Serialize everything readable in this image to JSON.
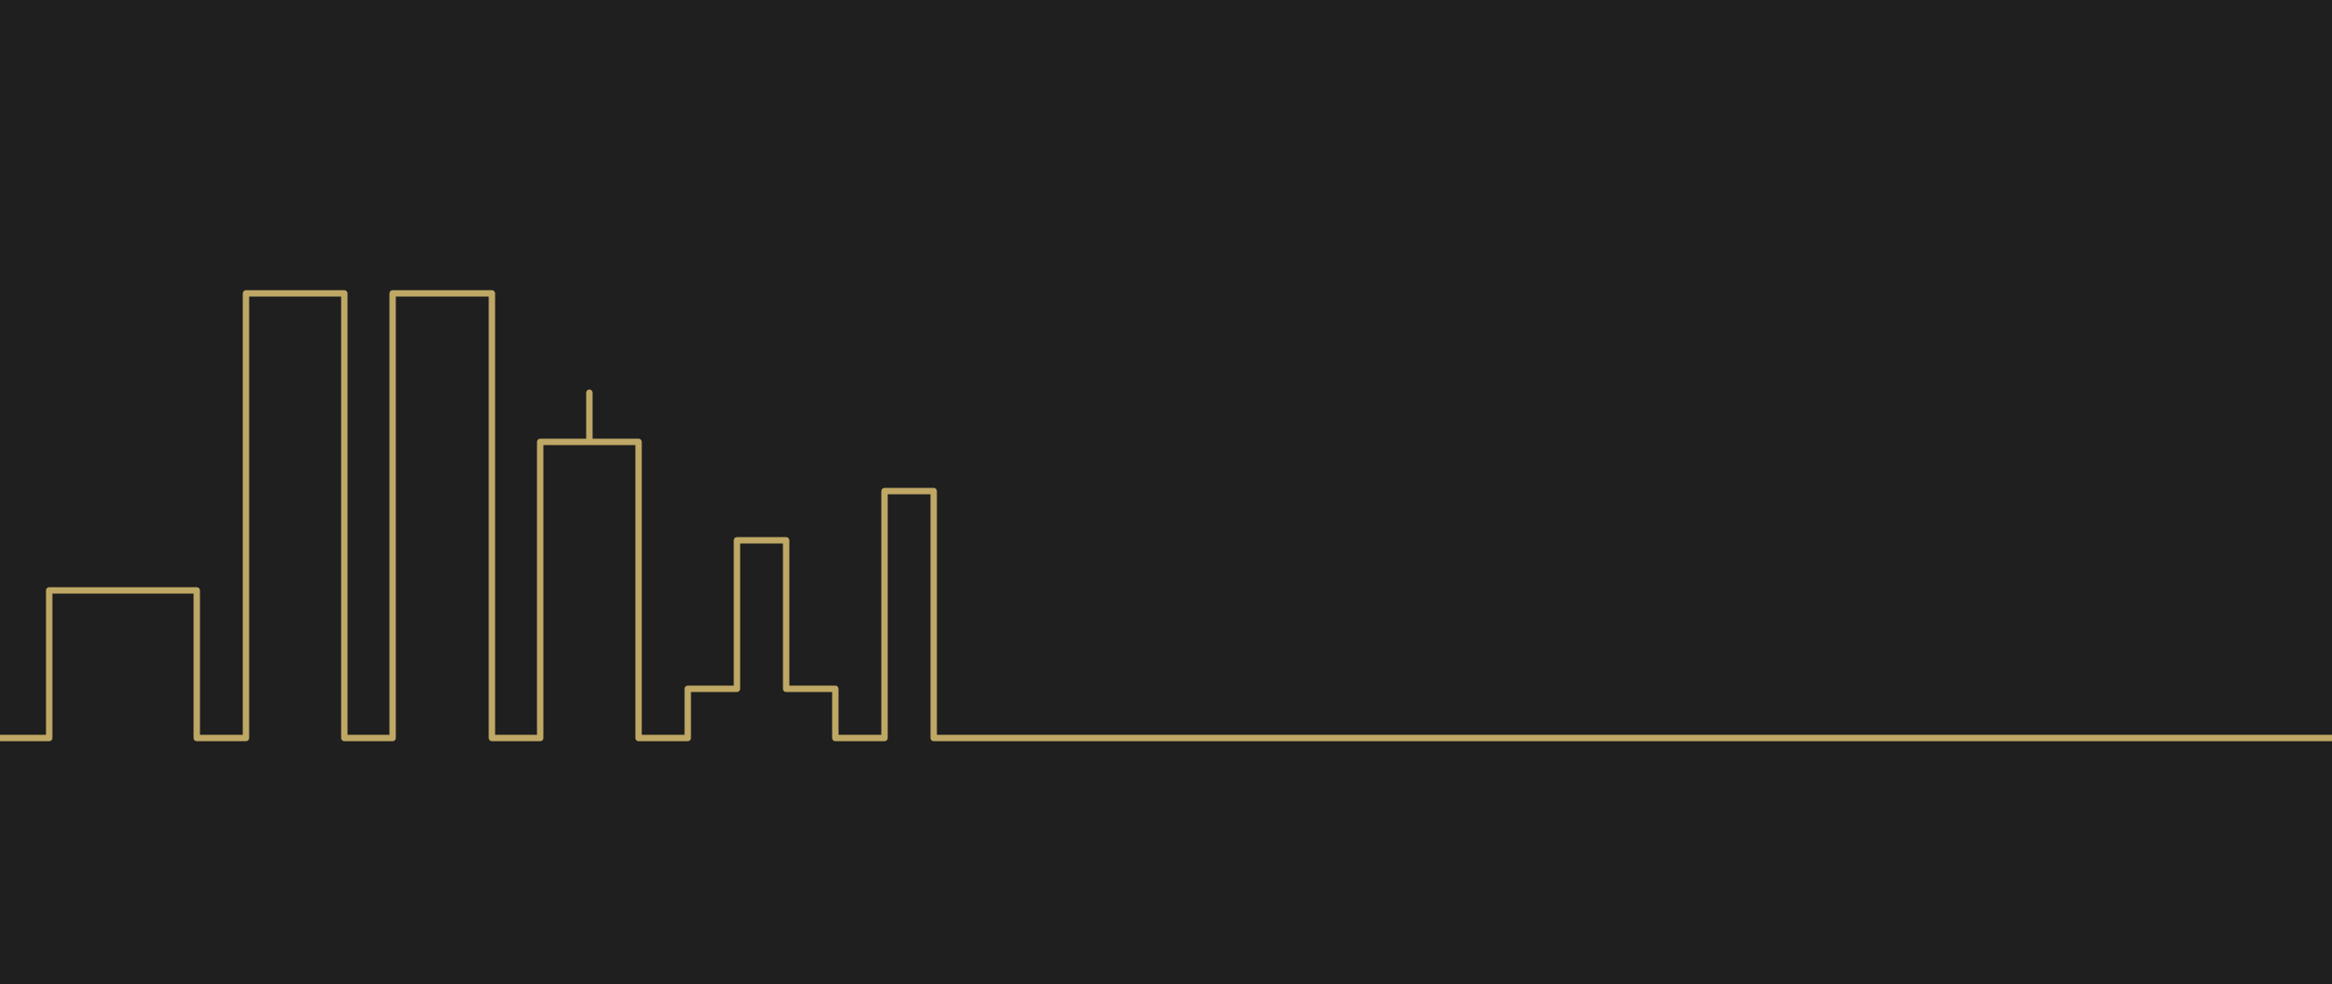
{
  "scene": {
    "background_color": "#1f1f1f",
    "line_color": "#bfa865",
    "subject": "city-skyline-line-art",
    "buildings": [
      "low-wide-building",
      "twin-tower-left",
      "twin-tower-right",
      "spire-tower",
      "stepped-tower",
      "narrow-tower"
    ],
    "features": [
      "antenna-spire",
      "horizon-ground-line"
    ]
  }
}
